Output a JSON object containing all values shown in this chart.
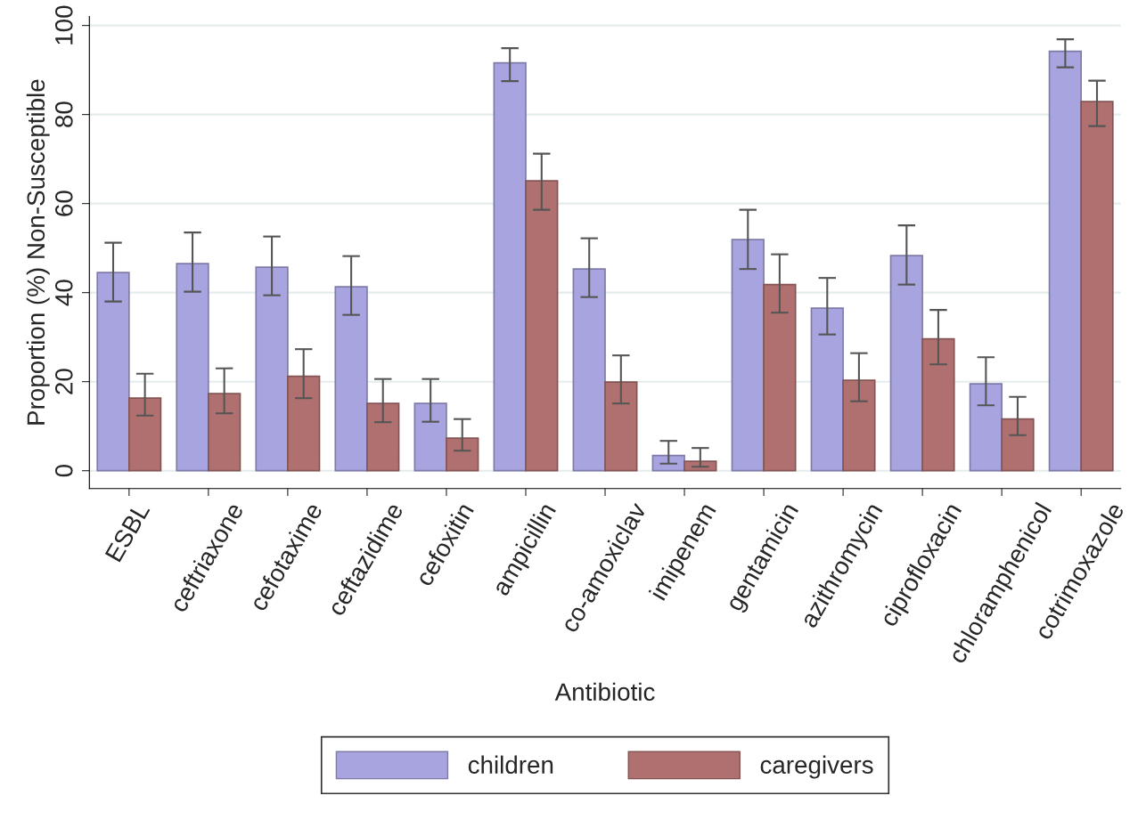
{
  "chart_data": {
    "type": "bar",
    "xlabel": "Antibiotic",
    "ylabel": "Proportion (%) Non-Susceptible",
    "categories": [
      "ESBL",
      "ceftriaxone",
      "cefotaxime",
      "ceftazidime",
      "cefoxitin",
      "ampicillin",
      "co-amoxiclav",
      "imipenem",
      "gentamicin",
      "azithromycin",
      "ciprofloxacin",
      "chloramphenicol",
      "cotrimoxazole"
    ],
    "series": [
      {
        "name": "children",
        "color": "#a8a4e0",
        "values": [
          44.5,
          46.5,
          45.7,
          41.3,
          15.1,
          91.6,
          45.3,
          3.4,
          51.9,
          36.5,
          48.3,
          19.5,
          94.2
        ],
        "errors": [
          [
            38,
            51.2
          ],
          [
            40.2,
            53.5
          ],
          [
            39.4,
            52.6
          ],
          [
            35,
            48.2
          ],
          [
            11,
            20.6
          ],
          [
            87.5,
            94.9
          ],
          [
            39,
            52.2
          ],
          [
            1.6,
            6.7
          ],
          [
            45.3,
            58.6
          ],
          [
            30.6,
            43.3
          ],
          [
            41.8,
            55.1
          ],
          [
            14.7,
            25.5
          ],
          [
            90.6,
            96.9
          ]
        ]
      },
      {
        "name": "caregivers",
        "color": "#b07070",
        "values": [
          16.3,
          17.3,
          21.2,
          15.1,
          7.3,
          65.1,
          19.9,
          2.1,
          41.8,
          20.3,
          29.6,
          11.6,
          82.9
        ],
        "errors": [
          [
            12.4,
            21.8
          ],
          [
            12.9,
            23
          ],
          [
            16.3,
            27.3
          ],
          [
            10.9,
            20.6
          ],
          [
            4.5,
            11.6
          ],
          [
            58.6,
            71.2
          ],
          [
            15.1,
            25.9
          ],
          [
            0.9,
            5.1
          ],
          [
            35.5,
            48.6
          ],
          [
            15.6,
            26.4
          ],
          [
            23.9,
            36.1
          ],
          [
            8,
            16.6
          ],
          [
            77.4,
            87.6
          ]
        ]
      }
    ],
    "ylim": [
      -4,
      102
    ],
    "yticks": [
      0,
      20,
      40,
      60,
      80,
      100
    ],
    "grid": "y",
    "legend": "bottom"
  }
}
